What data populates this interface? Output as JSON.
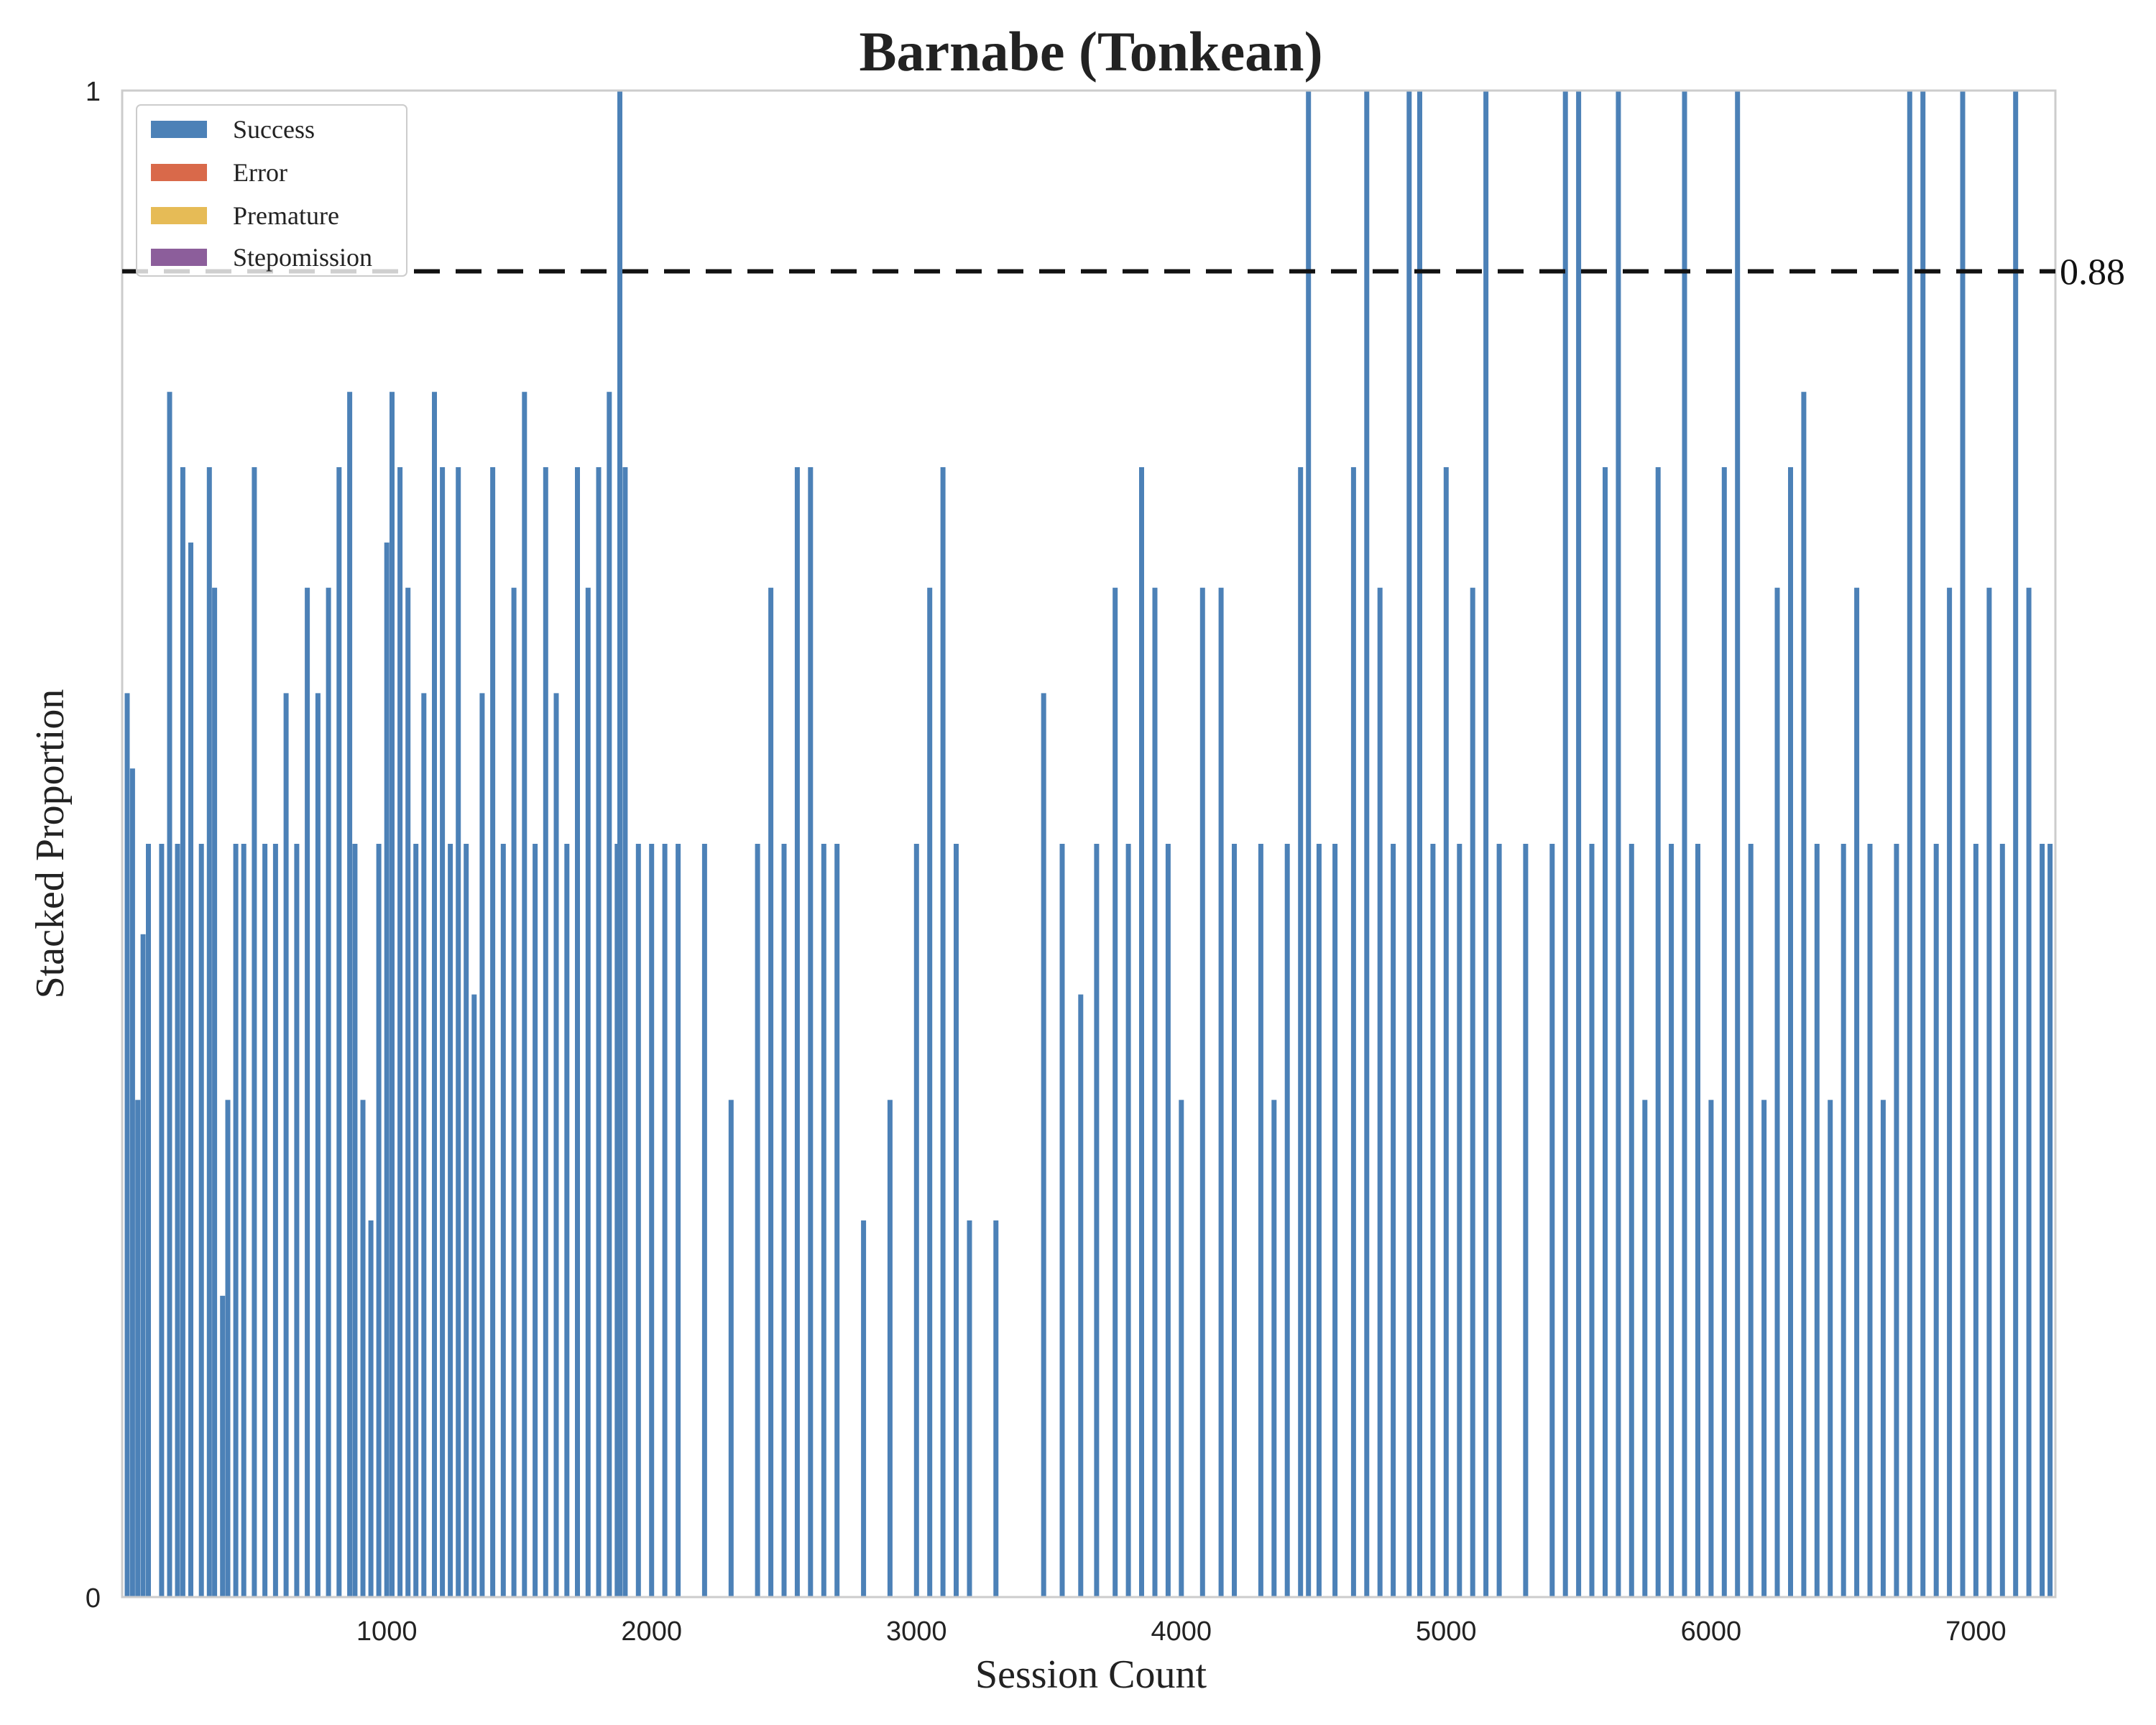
{
  "chart_data": {
    "type": "bar",
    "stacked": true,
    "title": "Barnabe (Tonkean)",
    "xlabel": "Session Count",
    "ylabel": "Stacked Proportion",
    "xlim": [
      1,
      7300
    ],
    "ylim": [
      0,
      1
    ],
    "x_ticks": [
      1000,
      2000,
      3000,
      4000,
      5000,
      6000,
      7000
    ],
    "y_ticks": [
      0,
      1
    ],
    "grid": false,
    "legend_position": "top-left",
    "colors": {
      "Success": "#4c81b7",
      "Error": "#d9694a",
      "Premature": "#e6bb56",
      "Stepomission": "#8c5e9b",
      "reference_line": "#111111"
    },
    "series": [
      {
        "name": "Success",
        "note": "dense per-session bars; sampled approximation below"
      },
      {
        "name": "Error"
      },
      {
        "name": "Premature"
      },
      {
        "name": "Stepomission"
      }
    ],
    "reference_line": {
      "value": 0.88,
      "label": "0.88"
    },
    "samples": [
      [
        20,
        0.6
      ],
      [
        40,
        0.55
      ],
      [
        60,
        0.33
      ],
      [
        80,
        0.44
      ],
      [
        100,
        0.5
      ],
      [
        150,
        0.5
      ],
      [
        180,
        0.8
      ],
      [
        210,
        0.5
      ],
      [
        230,
        0.75
      ],
      [
        260,
        0.7
      ],
      [
        300,
        0.5
      ],
      [
        330,
        0.75
      ],
      [
        350,
        0.67
      ],
      [
        380,
        0.2
      ],
      [
        400,
        0.33
      ],
      [
        430,
        0.5
      ],
      [
        460,
        0.5
      ],
      [
        500,
        0.75
      ],
      [
        540,
        0.5
      ],
      [
        580,
        0.5
      ],
      [
        620,
        0.6
      ],
      [
        660,
        0.5
      ],
      [
        700,
        0.67
      ],
      [
        740,
        0.6
      ],
      [
        780,
        0.67
      ],
      [
        820,
        0.75
      ],
      [
        860,
        0.8
      ],
      [
        880,
        0.5
      ],
      [
        910,
        0.33
      ],
      [
        940,
        0.25
      ],
      [
        970,
        0.5
      ],
      [
        1000,
        0.7
      ],
      [
        1020,
        0.8
      ],
      [
        1050,
        0.75
      ],
      [
        1080,
        0.67
      ],
      [
        1110,
        0.5
      ],
      [
        1140,
        0.6
      ],
      [
        1180,
        0.8
      ],
      [
        1210,
        0.75
      ],
      [
        1240,
        0.5
      ],
      [
        1270,
        0.75
      ],
      [
        1300,
        0.5
      ],
      [
        1330,
        0.4
      ],
      [
        1360,
        0.6
      ],
      [
        1400,
        0.75
      ],
      [
        1440,
        0.5
      ],
      [
        1480,
        0.67
      ],
      [
        1520,
        0.8
      ],
      [
        1560,
        0.5
      ],
      [
        1600,
        0.75
      ],
      [
        1640,
        0.6
      ],
      [
        1680,
        0.5
      ],
      [
        1720,
        0.75
      ],
      [
        1760,
        0.67
      ],
      [
        1800,
        0.75
      ],
      [
        1840,
        0.8
      ],
      [
        1870,
        0.5
      ],
      [
        1880,
        1.0
      ],
      [
        1900,
        0.75
      ],
      [
        1950,
        0.5
      ],
      [
        2000,
        0.5
      ],
      [
        2050,
        0.5
      ],
      [
        2100,
        0.5
      ],
      [
        2200,
        0.5
      ],
      [
        2300,
        0.33
      ],
      [
        2400,
        0.5
      ],
      [
        2450,
        0.67
      ],
      [
        2500,
        0.5
      ],
      [
        2550,
        0.75
      ],
      [
        2600,
        0.75
      ],
      [
        2650,
        0.5
      ],
      [
        2700,
        0.5
      ],
      [
        2800,
        0.25
      ],
      [
        2900,
        0.33
      ],
      [
        3000,
        0.5
      ],
      [
        3050,
        0.67
      ],
      [
        3100,
        0.75
      ],
      [
        3150,
        0.5
      ],
      [
        3200,
        0.25
      ],
      [
        3300,
        0.25
      ],
      [
        3400,
        0.0
      ],
      [
        3480,
        0.6
      ],
      [
        3550,
        0.5
      ],
      [
        3620,
        0.4
      ],
      [
        3680,
        0.5
      ],
      [
        3750,
        0.67
      ],
      [
        3800,
        0.5
      ],
      [
        3850,
        0.75
      ],
      [
        3900,
        0.67
      ],
      [
        3950,
        0.5
      ],
      [
        4000,
        0.33
      ],
      [
        4080,
        0.67
      ],
      [
        4150,
        0.67
      ],
      [
        4200,
        0.5
      ],
      [
        4300,
        0.5
      ],
      [
        4350,
        0.33
      ],
      [
        4400,
        0.5
      ],
      [
        4450,
        0.75
      ],
      [
        4480,
        1.0
      ],
      [
        4520,
        0.5
      ],
      [
        4580,
        0.5
      ],
      [
        4650,
        0.75
      ],
      [
        4700,
        1.0
      ],
      [
        4750,
        0.67
      ],
      [
        4800,
        0.5
      ],
      [
        4860,
        1.0
      ],
      [
        4900,
        1.0
      ],
      [
        4950,
        0.5
      ],
      [
        5000,
        0.75
      ],
      [
        5050,
        0.5
      ],
      [
        5100,
        0.67
      ],
      [
        5150,
        1.0
      ],
      [
        5200,
        0.5
      ],
      [
        5300,
        0.5
      ],
      [
        5400,
        0.5
      ],
      [
        5450,
        1.0
      ],
      [
        5500,
        1.0
      ],
      [
        5550,
        0.5
      ],
      [
        5600,
        0.75
      ],
      [
        5650,
        1.0
      ],
      [
        5700,
        0.5
      ],
      [
        5750,
        0.33
      ],
      [
        5800,
        0.75
      ],
      [
        5850,
        0.5
      ],
      [
        5900,
        1.0
      ],
      [
        5950,
        0.5
      ],
      [
        6000,
        0.33
      ],
      [
        6050,
        0.75
      ],
      [
        6100,
        1.0
      ],
      [
        6150,
        0.5
      ],
      [
        6200,
        0.33
      ],
      [
        6250,
        0.67
      ],
      [
        6300,
        0.75
      ],
      [
        6350,
        0.8
      ],
      [
        6400,
        0.5
      ],
      [
        6450,
        0.33
      ],
      [
        6500,
        0.5
      ],
      [
        6550,
        0.67
      ],
      [
        6600,
        0.5
      ],
      [
        6650,
        0.33
      ],
      [
        6700,
        0.5
      ],
      [
        6750,
        1.0
      ],
      [
        6800,
        1.0
      ],
      [
        6850,
        0.5
      ],
      [
        6900,
        0.67
      ],
      [
        6950,
        1.0
      ],
      [
        7000,
        0.5
      ],
      [
        7050,
        0.67
      ],
      [
        7100,
        0.5
      ],
      [
        7150,
        1.0
      ],
      [
        7200,
        0.67
      ],
      [
        7250,
        0.5
      ],
      [
        7280,
        0.5
      ]
    ]
  }
}
